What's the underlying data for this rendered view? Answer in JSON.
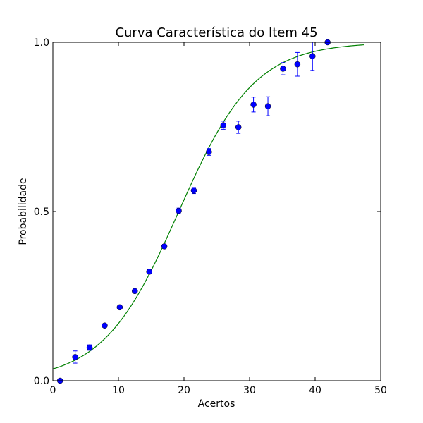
{
  "chart_data": {
    "type": "scatter",
    "title": "Curva Característica do Item 45",
    "xlabel": "Acertos",
    "ylabel": "Probabilidade",
    "xlim": [
      0,
      50
    ],
    "ylim": [
      0.0,
      1.0
    ],
    "xticks": [
      0,
      10,
      20,
      30,
      40,
      50
    ],
    "xtick_labels": [
      "0",
      "10",
      "20",
      "30",
      "40",
      "50"
    ],
    "yticks": [
      0.0,
      0.5,
      1.0
    ],
    "ytick_labels": [
      "0.0",
      "0.5",
      "1.0"
    ],
    "grid": false,
    "points": {
      "color": "#0000ff",
      "x": [
        1.1,
        3.4,
        5.6,
        7.9,
        10.2,
        12.5,
        14.7,
        17.0,
        19.2,
        21.5,
        23.8,
        26.0,
        28.3,
        30.6,
        32.8,
        35.1,
        37.3,
        39.6,
        41.9
      ],
      "y": [
        0.0,
        0.07,
        0.098,
        0.163,
        0.217,
        0.265,
        0.322,
        0.397,
        0.502,
        0.562,
        0.676,
        0.755,
        0.749,
        0.816,
        0.811,
        0.922,
        0.935,
        0.959,
        1.0
      ],
      "err": [
        0.0,
        0.018,
        0.008,
        0.005,
        0.005,
        0.005,
        0.006,
        0.006,
        0.008,
        0.009,
        0.01,
        0.012,
        0.018,
        0.022,
        0.028,
        0.018,
        0.035,
        0.042,
        0.0
      ]
    },
    "curve": {
      "color": "#008000",
      "type": "logistic",
      "a": 0.173,
      "b": 19.2,
      "x_range": [
        0,
        47.5
      ]
    }
  }
}
